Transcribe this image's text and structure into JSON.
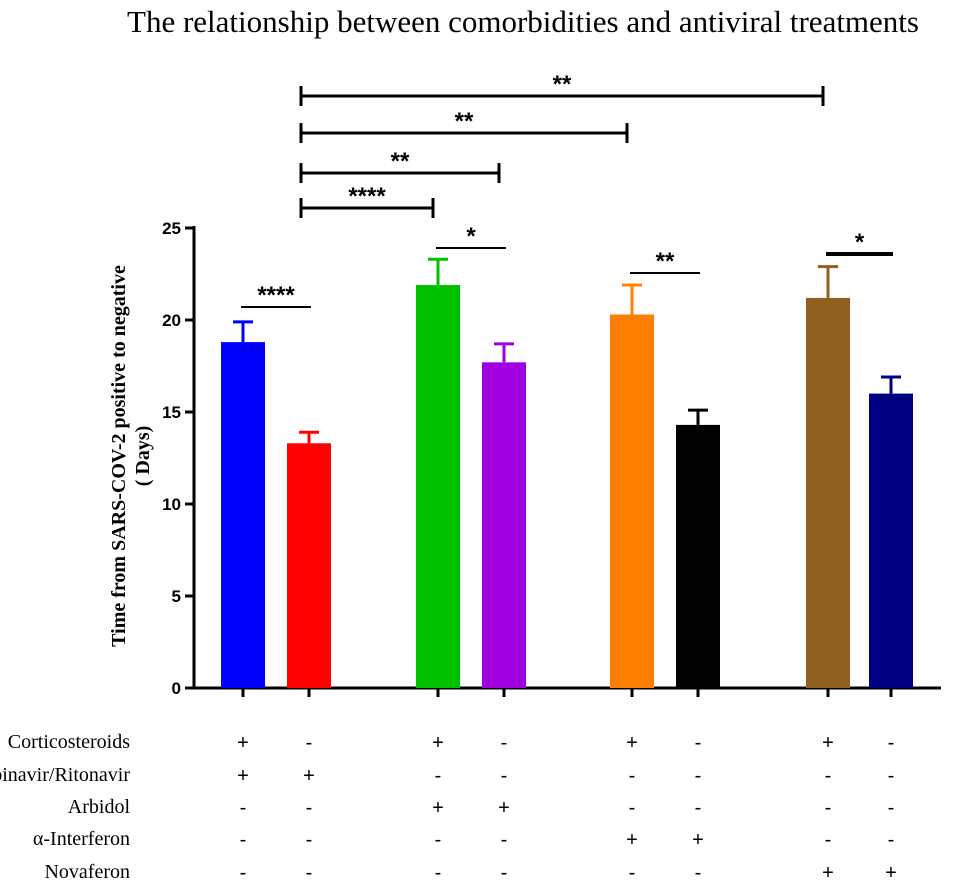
{
  "chart_data": {
    "type": "bar",
    "title": "The relationship between comorbidities and antiviral treatments",
    "ylabel": "Time from SARS-COV-2 positive to negative\n( Days)",
    "ylabel_line1": "Time from SARS-COV-2 positive to negative",
    "ylabel_line2": "( Days)",
    "ylim": [
      0,
      25
    ],
    "yticks": [
      0,
      5,
      10,
      15,
      20,
      25
    ],
    "ytick_labels": [
      "0",
      "5",
      "10",
      "15",
      "20",
      "25"
    ],
    "bars": [
      {
        "value": 18.8,
        "error": 1.1,
        "color": "#0000ff"
      },
      {
        "value": 13.3,
        "error": 0.6,
        "color": "#ff0000"
      },
      {
        "value": 21.9,
        "error": 1.4,
        "color": "#00c000"
      },
      {
        "value": 17.7,
        "error": 1.0,
        "color": "#a000e0"
      },
      {
        "value": 20.3,
        "error": 1.6,
        "color": "#ff8000"
      },
      {
        "value": 14.3,
        "error": 0.8,
        "color": "#000000"
      },
      {
        "value": 21.2,
        "error": 1.7,
        "color": "#916020"
      },
      {
        "value": 16.0,
        "error": 0.9,
        "color": "#000080"
      }
    ],
    "treatment_rows": [
      {
        "label": "Corticosteroids",
        "signs": [
          "+",
          "-",
          "+",
          "-",
          "+",
          "-",
          "+",
          "-"
        ]
      },
      {
        "label": "Lopinavir/Ritonavir",
        "signs": [
          "+",
          "+",
          "-",
          "-",
          "-",
          "-",
          "-",
          "-"
        ]
      },
      {
        "label": "Arbidol",
        "signs": [
          "-",
          "-",
          "+",
          "+",
          "-",
          "-",
          "-",
          "-"
        ]
      },
      {
        "label": "α-Interferon",
        "signs": [
          "-",
          "-",
          "-",
          "-",
          "+",
          "+",
          "-",
          "-"
        ]
      },
      {
        "label": "Novaferon",
        "signs": [
          "-",
          "-",
          "-",
          "-",
          "-",
          "-",
          "+",
          "+"
        ]
      }
    ],
    "significance": [
      {
        "from": 0,
        "to": 1,
        "label": "****"
      },
      {
        "from": 2,
        "to": 3,
        "label": "*"
      },
      {
        "from": 4,
        "to": 5,
        "label": "**"
      },
      {
        "from": 6,
        "to": 7,
        "label": "*"
      },
      {
        "from": 0,
        "to": 2,
        "label": "****",
        "bracket": true
      },
      {
        "from": 0,
        "to": 3,
        "label": "**",
        "bracket": true
      },
      {
        "from": 0,
        "to": 4,
        "label": "**",
        "bracket": true
      },
      {
        "from": 0,
        "to": 6,
        "label": "**",
        "bracket": true
      }
    ]
  }
}
